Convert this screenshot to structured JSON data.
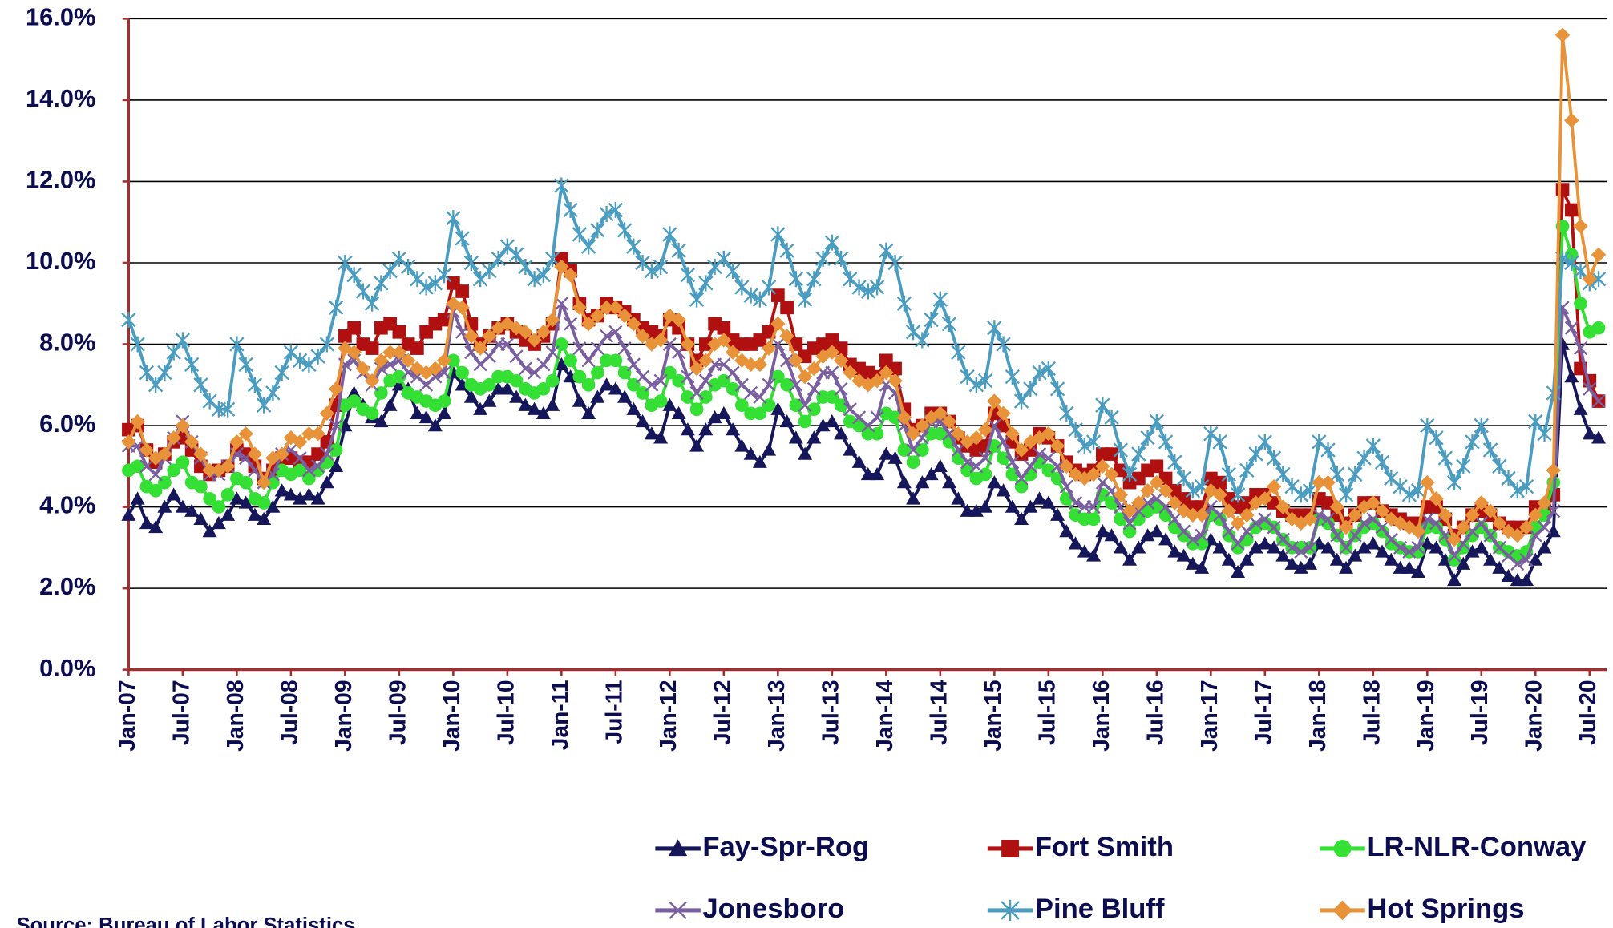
{
  "chart_data": {
    "type": "line",
    "categories": [
      "Jan-07",
      null,
      null,
      null,
      null,
      null,
      "Jul-07",
      null,
      null,
      null,
      null,
      null,
      "Jan-08",
      null,
      null,
      null,
      null,
      null,
      "Jul-08",
      null,
      null,
      null,
      null,
      null,
      "Jan-09",
      null,
      null,
      null,
      null,
      null,
      "Jul-09",
      null,
      null,
      null,
      null,
      null,
      "Jan-10",
      null,
      null,
      null,
      null,
      null,
      "Jul-10",
      null,
      null,
      null,
      null,
      null,
      "Jan-11",
      null,
      null,
      null,
      null,
      null,
      "Jul-11",
      null,
      null,
      null,
      null,
      null,
      "Jan-12",
      null,
      null,
      null,
      null,
      null,
      "Jul-12",
      null,
      null,
      null,
      null,
      null,
      "Jan-13",
      null,
      null,
      null,
      null,
      null,
      "Jul-13",
      null,
      null,
      null,
      null,
      null,
      "Jan-14",
      null,
      null,
      null,
      null,
      null,
      "Jul-14",
      null,
      null,
      null,
      null,
      null,
      "Jan-15",
      null,
      null,
      null,
      null,
      null,
      "Jul-15",
      null,
      null,
      null,
      null,
      null,
      "Jan-16",
      null,
      null,
      null,
      null,
      null,
      "Jul-16",
      null,
      null,
      null,
      null,
      null,
      "Jan-17",
      null,
      null,
      null,
      null,
      null,
      "Jul-17",
      null,
      null,
      null,
      null,
      null,
      "Jan-18",
      null,
      null,
      null,
      null,
      null,
      "Jul-18",
      null,
      null,
      null,
      null,
      null,
      "Jan-19",
      null,
      null,
      null,
      null,
      null,
      "Jul-19",
      null,
      null,
      null,
      null,
      null,
      "Jan-20",
      null,
      null,
      null,
      null,
      null,
      "Jul-20",
      null
    ],
    "ylim": [
      0,
      16
    ],
    "yticks": [
      {
        "value": 0,
        "label": "0.0%"
      },
      {
        "value": 2,
        "label": "2.0%"
      },
      {
        "value": 4,
        "label": "4.0%"
      },
      {
        "value": 6,
        "label": "6.0%"
      },
      {
        "value": 8,
        "label": "8.0%"
      },
      {
        "value": 10,
        "label": "10.0%"
      },
      {
        "value": 12,
        "label": "12.0%"
      },
      {
        "value": 14,
        "label": "14.0%"
      },
      {
        "value": 16,
        "label": "16.0%"
      }
    ],
    "grid": true,
    "source": "Source: Bureau of Labor Statistics",
    "series": [
      {
        "name": "Fay-Spr-Rog",
        "color": "#16165a",
        "marker": "triangle",
        "values": [
          3.8,
          4.2,
          3.6,
          3.5,
          4.0,
          4.3,
          4.0,
          3.9,
          3.7,
          3.4,
          3.6,
          3.8,
          4.2,
          4.1,
          3.8,
          3.7,
          4.0,
          4.4,
          4.3,
          4.2,
          4.3,
          4.2,
          4.6,
          5.0,
          6.0,
          6.8,
          6.5,
          6.2,
          6.1,
          6.5,
          7.0,
          6.9,
          6.3,
          6.2,
          6.0,
          6.3,
          7.3,
          7.0,
          6.7,
          6.4,
          6.6,
          6.9,
          6.9,
          6.7,
          6.5,
          6.4,
          6.3,
          6.5,
          7.5,
          7.2,
          6.6,
          6.3,
          6.7,
          7.0,
          6.9,
          6.7,
          6.4,
          6.1,
          5.8,
          5.7,
          6.5,
          6.3,
          5.9,
          5.5,
          5.9,
          6.2,
          6.3,
          5.9,
          5.5,
          5.3,
          5.1,
          5.4,
          6.4,
          6.1,
          5.7,
          5.3,
          5.7,
          6.0,
          6.1,
          5.8,
          5.4,
          5.1,
          4.8,
          4.8,
          5.3,
          5.2,
          4.6,
          4.2,
          4.6,
          4.8,
          5.0,
          4.6,
          4.2,
          3.9,
          3.9,
          4.0,
          4.6,
          4.4,
          4.0,
          3.7,
          4.0,
          4.2,
          4.1,
          3.8,
          3.4,
          3.1,
          2.9,
          2.8,
          3.4,
          3.3,
          3.0,
          2.7,
          3.0,
          3.3,
          3.4,
          3.2,
          2.9,
          2.8,
          2.6,
          2.5,
          3.2,
          3.0,
          2.7,
          2.4,
          2.7,
          3.0,
          3.1,
          3.0,
          2.8,
          2.6,
          2.5,
          2.6,
          3.1,
          3.0,
          2.7,
          2.5,
          2.8,
          3.0,
          3.1,
          2.9,
          2.7,
          2.5,
          2.5,
          2.4,
          3.1,
          3.0,
          2.7,
          2.2,
          2.6,
          2.9,
          3.0,
          2.7,
          2.5,
          2.3,
          2.2,
          2.2,
          2.7,
          3.0,
          3.4,
          8.0,
          7.2,
          6.4,
          5.8,
          5.7
        ]
      },
      {
        "name": "Fort Smith",
        "color": "#b01010",
        "marker": "square",
        "values": [
          5.9,
          6.0,
          5.4,
          5.1,
          5.3,
          5.6,
          5.7,
          5.4,
          5.0,
          4.8,
          4.9,
          5.0,
          5.4,
          5.3,
          5.0,
          4.7,
          4.9,
          5.2,
          5.2,
          5.1,
          5.1,
          5.3,
          5.6,
          6.5,
          8.2,
          8.4,
          8.0,
          7.9,
          8.4,
          8.5,
          8.3,
          8.0,
          7.9,
          8.3,
          8.5,
          8.6,
          9.5,
          9.3,
          8.5,
          8.0,
          8.2,
          8.4,
          8.5,
          8.3,
          8.1,
          8.0,
          8.2,
          8.5,
          10.1,
          9.8,
          9.0,
          8.6,
          8.7,
          9.0,
          8.9,
          8.8,
          8.6,
          8.4,
          8.3,
          8.2,
          8.6,
          8.4,
          8.0,
          7.6,
          8.0,
          8.5,
          8.4,
          8.1,
          8.0,
          8.0,
          8.1,
          8.3,
          9.2,
          8.9,
          8.0,
          7.7,
          7.9,
          8.0,
          8.1,
          7.9,
          7.5,
          7.4,
          7.3,
          7.2,
          7.6,
          7.4,
          6.4,
          5.9,
          6.0,
          6.3,
          6.3,
          6.1,
          5.7,
          5.5,
          5.4,
          5.5,
          6.3,
          6.0,
          5.6,
          5.3,
          5.4,
          5.8,
          5.7,
          5.5,
          5.1,
          4.9,
          4.8,
          4.9,
          5.3,
          5.3,
          4.9,
          4.6,
          4.7,
          4.9,
          5.0,
          4.7,
          4.4,
          4.2,
          4.0,
          4.0,
          4.7,
          4.6,
          4.2,
          4.0,
          4.1,
          4.3,
          4.3,
          4.1,
          3.9,
          3.8,
          3.8,
          3.8,
          4.2,
          4.1,
          3.8,
          3.6,
          3.8,
          4.1,
          4.1,
          3.9,
          3.8,
          3.7,
          3.6,
          3.6,
          4.0,
          4.0,
          3.7,
          3.3,
          3.5,
          3.8,
          3.9,
          3.8,
          3.6,
          3.5,
          3.5,
          3.5,
          4.0,
          3.9,
          4.3,
          11.8,
          11.3,
          7.4,
          7.1,
          6.6
        ]
      },
      {
        "name": "LR-NLR-Conway",
        "color": "#33e033",
        "marker": "circle",
        "values": [
          4.9,
          5.0,
          4.5,
          4.4,
          4.6,
          4.9,
          5.1,
          4.6,
          4.5,
          4.2,
          4.0,
          4.3,
          4.7,
          4.6,
          4.2,
          4.1,
          4.6,
          4.9,
          4.8,
          4.9,
          4.7,
          4.9,
          5.1,
          5.4,
          6.5,
          6.6,
          6.4,
          6.3,
          6.8,
          7.1,
          7.2,
          6.8,
          6.7,
          6.6,
          6.5,
          6.6,
          7.6,
          7.3,
          7.0,
          6.9,
          7.0,
          7.2,
          7.2,
          7.1,
          6.9,
          6.8,
          6.9,
          7.1,
          8.0,
          7.6,
          7.2,
          7.0,
          7.3,
          7.6,
          7.6,
          7.3,
          7.0,
          6.8,
          6.5,
          6.6,
          7.3,
          7.1,
          6.7,
          6.4,
          6.7,
          7.0,
          7.1,
          6.9,
          6.5,
          6.3,
          6.3,
          6.5,
          7.2,
          7.0,
          6.5,
          6.1,
          6.4,
          6.7,
          6.7,
          6.5,
          6.1,
          6.0,
          5.8,
          5.8,
          6.3,
          6.2,
          5.4,
          5.1,
          5.4,
          5.8,
          5.8,
          5.6,
          5.2,
          4.9,
          4.7,
          4.8,
          5.5,
          5.2,
          4.8,
          4.5,
          4.8,
          5.1,
          4.9,
          4.7,
          4.2,
          3.8,
          3.7,
          3.7,
          4.3,
          4.1,
          3.7,
          3.4,
          3.7,
          3.9,
          4.0,
          3.8,
          3.5,
          3.3,
          3.1,
          3.1,
          3.8,
          3.7,
          3.3,
          3.0,
          3.2,
          3.5,
          3.6,
          3.5,
          3.2,
          3.0,
          3.0,
          3.0,
          3.7,
          3.6,
          3.3,
          3.0,
          3.3,
          3.5,
          3.6,
          3.4,
          3.1,
          3.0,
          2.9,
          2.9,
          3.5,
          3.5,
          3.2,
          2.7,
          3.0,
          3.3,
          3.5,
          3.3,
          3.0,
          2.9,
          2.8,
          2.9,
          3.5,
          3.8,
          4.6,
          10.9,
          10.2,
          9.0,
          8.3,
          8.4
        ]
      },
      {
        "name": "Jonesboro",
        "color": "#7a5fa0",
        "marker": "x",
        "values": [
          5.5,
          5.5,
          5.0,
          4.8,
          5.2,
          5.7,
          6.1,
          5.6,
          5.2,
          4.8,
          4.8,
          5.0,
          5.3,
          5.2,
          4.9,
          4.6,
          4.8,
          5.3,
          5.4,
          5.2,
          4.9,
          5.0,
          5.3,
          6.0,
          7.5,
          7.6,
          7.3,
          7.0,
          7.4,
          7.5,
          7.6,
          7.3,
          7.2,
          7.0,
          7.2,
          7.3,
          8.8,
          8.3,
          7.8,
          7.5,
          7.7,
          8.0,
          8.0,
          7.7,
          7.4,
          7.3,
          7.5,
          7.8,
          9.0,
          8.5,
          7.9,
          7.6,
          7.9,
          8.2,
          8.3,
          7.9,
          7.5,
          7.2,
          7.0,
          7.1,
          8.0,
          7.8,
          7.2,
          6.8,
          7.1,
          7.5,
          7.5,
          7.3,
          7.0,
          6.8,
          6.7,
          7.0,
          8.0,
          7.6,
          7.0,
          6.5,
          6.9,
          7.3,
          7.3,
          6.9,
          6.4,
          6.2,
          6.0,
          6.2,
          7.0,
          6.8,
          6.0,
          5.4,
          5.7,
          6.1,
          6.1,
          5.8,
          5.4,
          5.1,
          5.0,
          5.2,
          6.0,
          5.6,
          5.1,
          4.7,
          5.0,
          5.3,
          5.2,
          5.0,
          4.5,
          4.1,
          4.0,
          4.0,
          4.6,
          4.4,
          4.0,
          3.6,
          3.9,
          4.1,
          4.2,
          4.0,
          3.7,
          3.4,
          3.2,
          3.3,
          4.0,
          3.8,
          3.4,
          3.1,
          3.4,
          3.6,
          3.7,
          3.5,
          3.2,
          3.0,
          2.9,
          3.0,
          3.8,
          3.7,
          3.3,
          3.0,
          3.3,
          3.6,
          3.7,
          3.5,
          3.2,
          3.0,
          2.9,
          3.0,
          3.7,
          3.6,
          3.3,
          2.8,
          3.1,
          3.4,
          3.6,
          3.3,
          3.0,
          2.8,
          2.6,
          2.7,
          3.3,
          3.5,
          3.9,
          8.9,
          8.4,
          7.9,
          6.9,
          6.6
        ]
      },
      {
        "name": "Pine Bluff",
        "color": "#4a9cc0",
        "marker": "asterisk",
        "values": [
          8.6,
          8.0,
          7.3,
          7.0,
          7.3,
          7.8,
          8.1,
          7.5,
          7.0,
          6.6,
          6.4,
          6.4,
          8.0,
          7.5,
          7.0,
          6.5,
          6.8,
          7.3,
          7.8,
          7.6,
          7.5,
          7.7,
          8.0,
          8.9,
          10.0,
          9.7,
          9.3,
          9.0,
          9.5,
          9.8,
          10.1,
          9.9,
          9.6,
          9.4,
          9.5,
          9.7,
          11.1,
          10.6,
          10.0,
          9.6,
          9.8,
          10.1,
          10.4,
          10.2,
          9.9,
          9.6,
          9.7,
          10.1,
          11.9,
          11.3,
          10.7,
          10.4,
          10.8,
          11.2,
          11.3,
          10.8,
          10.4,
          10.0,
          9.8,
          9.9,
          10.7,
          10.3,
          9.7,
          9.1,
          9.5,
          9.9,
          10.1,
          9.8,
          9.4,
          9.2,
          9.1,
          9.4,
          10.7,
          10.3,
          9.6,
          9.1,
          9.6,
          10.1,
          10.5,
          10.1,
          9.6,
          9.4,
          9.3,
          9.4,
          10.3,
          10.0,
          9.0,
          8.3,
          8.1,
          8.6,
          9.1,
          8.5,
          7.8,
          7.2,
          7.0,
          7.1,
          8.4,
          8.0,
          7.2,
          6.6,
          6.9,
          7.3,
          7.4,
          6.9,
          6.3,
          5.9,
          5.5,
          5.6,
          6.5,
          6.2,
          5.4,
          4.8,
          5.3,
          5.7,
          6.1,
          5.6,
          5.1,
          4.7,
          4.4,
          4.5,
          5.8,
          5.6,
          4.8,
          4.3,
          4.9,
          5.3,
          5.6,
          5.2,
          4.8,
          4.5,
          4.3,
          4.4,
          5.6,
          5.4,
          4.8,
          4.3,
          4.8,
          5.2,
          5.5,
          5.1,
          4.7,
          4.5,
          4.3,
          4.4,
          6.0,
          5.7,
          5.2,
          4.6,
          5.0,
          5.6,
          6.0,
          5.4,
          5.0,
          4.7,
          4.4,
          4.5,
          6.1,
          5.8,
          6.8,
          10.1,
          10.0,
          9.8,
          9.5,
          9.6
        ]
      },
      {
        "name": "Hot Springs",
        "color": "#e8923a",
        "marker": "diamond",
        "values": [
          5.6,
          6.1,
          5.4,
          5.2,
          5.3,
          5.7,
          6.0,
          5.6,
          5.3,
          4.9,
          4.9,
          5.0,
          5.6,
          5.8,
          5.3,
          4.6,
          5.2,
          5.3,
          5.7,
          5.6,
          5.8,
          5.8,
          6.3,
          6.9,
          7.9,
          7.8,
          7.4,
          7.1,
          7.6,
          7.8,
          7.8,
          7.6,
          7.4,
          7.3,
          7.4,
          7.6,
          9.0,
          8.9,
          8.2,
          7.9,
          8.2,
          8.4,
          8.5,
          8.4,
          8.3,
          8.1,
          8.3,
          8.6,
          9.9,
          9.7,
          8.9,
          8.5,
          8.7,
          8.9,
          8.9,
          8.7,
          8.5,
          8.2,
          8.0,
          8.1,
          8.7,
          8.6,
          8.0,
          7.4,
          7.6,
          8.0,
          8.1,
          7.8,
          7.6,
          7.5,
          7.5,
          7.9,
          8.5,
          8.2,
          7.6,
          7.2,
          7.4,
          7.7,
          7.8,
          7.6,
          7.3,
          7.1,
          7.0,
          7.1,
          7.3,
          7.1,
          6.2,
          5.8,
          6.0,
          6.2,
          6.3,
          6.1,
          5.8,
          5.6,
          5.7,
          5.9,
          6.6,
          6.3,
          5.8,
          5.4,
          5.6,
          5.7,
          5.8,
          5.5,
          5.0,
          4.8,
          4.7,
          4.8,
          5.0,
          4.8,
          4.3,
          3.9,
          4.1,
          4.4,
          4.6,
          4.4,
          4.1,
          3.9,
          3.8,
          3.8,
          4.4,
          4.3,
          3.9,
          3.6,
          3.8,
          4.1,
          4.2,
          4.5,
          4.0,
          3.7,
          3.6,
          3.7,
          4.6,
          4.6,
          4.0,
          3.5,
          3.8,
          4.0,
          4.1,
          3.9,
          3.7,
          3.6,
          3.5,
          3.4,
          4.6,
          4.2,
          3.8,
          3.2,
          3.5,
          3.8,
          4.1,
          3.9,
          3.6,
          3.4,
          3.3,
          3.5,
          3.8,
          4.1,
          4.9,
          15.6,
          13.5,
          10.9,
          9.6,
          10.2
        ]
      }
    ]
  }
}
